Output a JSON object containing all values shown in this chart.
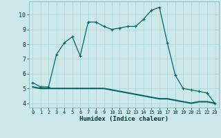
{
  "xlabel": "Humidex (Indice chaleur)",
  "line1_x": [
    0,
    1,
    2,
    3,
    4,
    5,
    6,
    7,
    8,
    9,
    10,
    11,
    12,
    13,
    14,
    15,
    16,
    17,
    18,
    19,
    20,
    21,
    22,
    23
  ],
  "line1_y": [
    5.4,
    5.1,
    5.1,
    7.3,
    8.1,
    8.5,
    7.2,
    9.5,
    9.5,
    9.2,
    9.0,
    9.1,
    9.2,
    9.2,
    9.7,
    10.3,
    10.5,
    8.1,
    5.9,
    5.0,
    4.9,
    4.8,
    4.7,
    4.0
  ],
  "line2_x": [
    0,
    1,
    2,
    3,
    4,
    5,
    6,
    7,
    8,
    9,
    10,
    11,
    12,
    13,
    14,
    15,
    16,
    17,
    18,
    19,
    20,
    21,
    22,
    23
  ],
  "line2_y": [
    5.1,
    5.0,
    5.0,
    5.0,
    5.0,
    5.0,
    5.0,
    5.0,
    5.0,
    5.0,
    4.9,
    4.8,
    4.7,
    4.6,
    4.5,
    4.4,
    4.3,
    4.3,
    4.2,
    4.1,
    4.0,
    4.1,
    4.1,
    4.0
  ],
  "line_color": "#006666",
  "bg_color": "#cce8e8",
  "grid_color": "#b0d4d4",
  "ylim": [
    3.7,
    10.9
  ],
  "xlim": [
    -0.5,
    23.5
  ],
  "yticks": [
    4,
    5,
    6,
    7,
    8,
    9,
    10
  ],
  "xtick_labels": [
    "0",
    "1",
    "2",
    "3",
    "4",
    "5",
    "6",
    "7",
    "8",
    "9",
    "10",
    "11",
    "12",
    "13",
    "14",
    "15",
    "16",
    "17",
    "18",
    "19",
    "20",
    "21",
    "22",
    "23"
  ],
  "xticks": [
    0,
    1,
    2,
    3,
    4,
    5,
    6,
    7,
    8,
    9,
    10,
    11,
    12,
    13,
    14,
    15,
    16,
    17,
    18,
    19,
    20,
    21,
    22,
    23
  ]
}
